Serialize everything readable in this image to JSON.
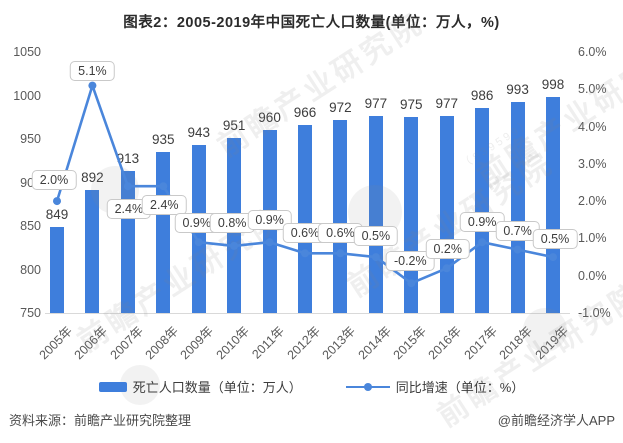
{
  "title": "图表2：2005-2019年中国死亡人口数量(单位：万人，%)",
  "chart_data": {
    "type": "bar+line",
    "categories": [
      "2005年",
      "2006年",
      "2007年",
      "2008年",
      "2009年",
      "2010年",
      "2011年",
      "2012年",
      "2013年",
      "2014年",
      "2015年",
      "2016年",
      "2017年",
      "2018年",
      "2019年"
    ],
    "series": [
      {
        "name": "死亡人口数量（单位：万人）",
        "type": "bar",
        "axis": "left",
        "values": [
          849,
          892,
          913,
          935,
          943,
          951,
          960,
          966,
          972,
          977,
          975,
          977,
          986,
          993,
          998
        ]
      },
      {
        "name": "同比增速（单位：%）",
        "type": "line",
        "axis": "right",
        "values": [
          2.0,
          5.1,
          2.4,
          2.4,
          0.9,
          0.8,
          0.9,
          0.6,
          0.6,
          0.5,
          -0.2,
          0.2,
          0.9,
          0.7,
          0.5
        ],
        "labels": [
          "2.0%",
          "5.1%",
          "2.4%",
          "2.4%",
          "0.9%",
          "0.8%",
          "0.9%",
          "0.6%",
          "0.6%",
          "0.5%",
          "-0.2%",
          "0.2%",
          "0.9%",
          "0.7%",
          "0.5%"
        ]
      }
    ],
    "left_axis": {
      "min": 750,
      "max": 1050,
      "ticks": [
        "1050",
        "1000",
        "950",
        "900",
        "850",
        "800",
        "750"
      ]
    },
    "right_axis": {
      "min": -1.0,
      "max": 6.0,
      "ticks": [
        "6.0%",
        "5.0%",
        "4.0%",
        "3.0%",
        "2.0%",
        "1.0%",
        "0.0%",
        "-1.0%"
      ]
    },
    "colors": {
      "bar": "#3E7EDC",
      "line": "#4A86DB"
    },
    "grid": false,
    "legend_position": "bottom"
  },
  "legend": {
    "items": [
      {
        "label": "死亡人口数量（单位：万人）",
        "marker": "bar"
      },
      {
        "label": "同比增速（单位：%）",
        "marker": "line"
      }
    ]
  },
  "footer": {
    "source": "资料来源：前瞻产业研究院整理",
    "credit": "@前瞻经济学人APP"
  },
  "watermark": {
    "text": "前瞻产业研究院",
    "code": "（839599）"
  }
}
